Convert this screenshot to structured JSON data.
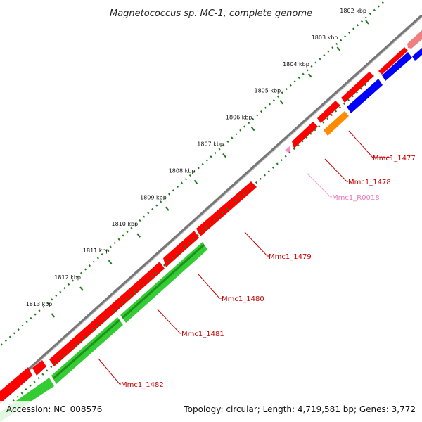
{
  "title": "Magnetococcus sp. MC-1, complete genome",
  "footer": {
    "accession": "Accession: NC_008576",
    "summary": "Topology: circular; Length: 4,719,581 bp; Genes: 3,772"
  },
  "colors": {
    "backbone": "#8c8c8c",
    "ruler": "#1f7a1f",
    "forward_gene": "#ff0000",
    "reverse_gene": "#0000ff",
    "rna_gene": "#ff8c00",
    "partial_gene": "#f08080",
    "lower_gene": "#33cc33",
    "trna": "#ff88cc",
    "label_red": "#cc0000",
    "label_pink": "#e879b8"
  },
  "ruler_ticks": [
    {
      "kbp": 1802,
      "label": "1802 kbp"
    },
    {
      "kbp": 1803,
      "label": "1803 kbp"
    },
    {
      "kbp": 1804,
      "label": "1804 kbp"
    },
    {
      "kbp": 1805,
      "label": "1805 kbp"
    },
    {
      "kbp": 1806,
      "label": "1806 kbp"
    },
    {
      "kbp": 1807,
      "label": "1807 kbp"
    },
    {
      "kbp": 1808,
      "label": "1808 kbp"
    },
    {
      "kbp": 1809,
      "label": "1809 kbp"
    },
    {
      "kbp": 1810,
      "label": "1810 kbp"
    },
    {
      "kbp": 1811,
      "label": "1811 kbp"
    },
    {
      "kbp": 1812,
      "label": "1812 kbp"
    },
    {
      "kbp": 1813,
      "label": "1813 kbp"
    }
  ],
  "genes": [
    {
      "id": "Mmc1_1477",
      "label": "Mmc1_1477",
      "track": "reverse",
      "color": "#0000ff"
    },
    {
      "id": "Mmc1_1478",
      "label": "Mmc1_1478",
      "track": "reverse",
      "color": "#ff8c00"
    },
    {
      "id": "Mmc1_R0018",
      "label": "Mmc1_R0018",
      "track": "forward",
      "color": "#ff88cc"
    },
    {
      "id": "Mmc1_1479",
      "label": "Mmc1_1479",
      "track": "forward",
      "color": "#ff0000"
    },
    {
      "id": "Mmc1_1480",
      "label": "Mmc1_1480",
      "track": "forward",
      "color": "#ff0000"
    },
    {
      "id": "Mmc1_1481",
      "label": "Mmc1_1481",
      "track": "lower",
      "color": "#33cc33"
    },
    {
      "id": "Mmc1_1482",
      "label": "Mmc1_1482",
      "track": "lower",
      "color": "#33cc33"
    }
  ]
}
